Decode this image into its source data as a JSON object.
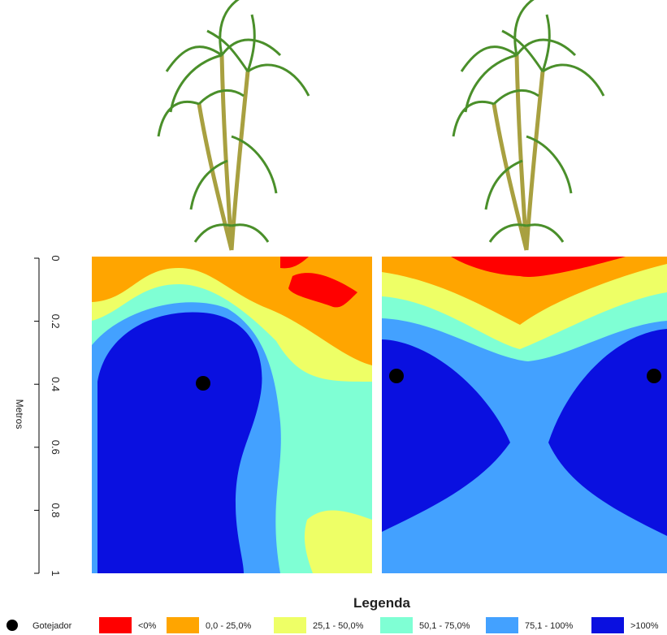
{
  "figure": {
    "axis": {
      "label": "Metros",
      "lim": [
        0,
        1
      ],
      "ticks": [
        0,
        0.2,
        0.4,
        0.6,
        0.8,
        1
      ]
    },
    "legend": {
      "title": "Legenda",
      "marker": "Gotejador",
      "items": [
        {
          "label": "<0%",
          "color": "#ff0000"
        },
        {
          "label": "0,0 - 25,0%",
          "color": "#ffa500"
        },
        {
          "label": "25,1 - 50,0%",
          "color": "#eeff66"
        },
        {
          "label": "50,1 - 75,0%",
          "color": "#7fffd4"
        },
        {
          "label": "75,1 - 100%",
          "color": "#43a1ff"
        },
        {
          "label": ">100%",
          "color": "#0a10e0"
        }
      ]
    }
  }
}
